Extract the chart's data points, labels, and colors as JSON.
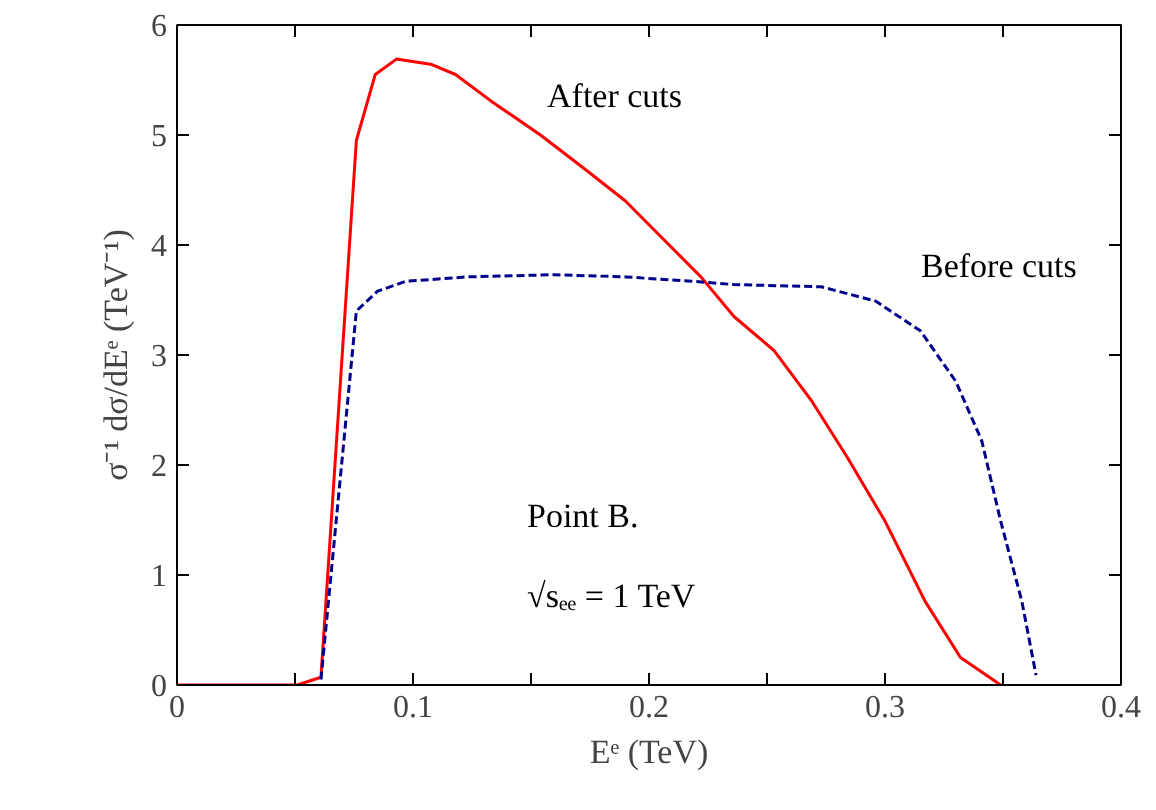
{
  "chart_data": {
    "type": "line",
    "xlabel": "Eᵉ (TeV)",
    "ylabel": "σ⁻¹ dσ/dEᵉ (TeV⁻¹)",
    "xlim": [
      0,
      0.4
    ],
    "ylim": [
      0,
      6
    ],
    "xticks": [
      0,
      {
        "value": 0.05,
        "label": null
      },
      0.1,
      {
        "value": 0.15,
        "label": null
      },
      0.2,
      {
        "value": 0.25,
        "label": null
      },
      0.3,
      {
        "value": 0.35,
        "label": null
      },
      0.4
    ],
    "yticks": [
      0,
      1,
      2,
      3,
      4,
      5,
      6
    ],
    "grid": false,
    "annotations": [
      "Point B.",
      "√sₑₑ = 1 TeV"
    ],
    "series": [
      {
        "name": "After cuts",
        "color": "#ff0000",
        "line_style": "solid",
        "x": [
          0,
          0.051,
          0.061,
          0.076,
          0.084,
          0.093,
          0.108,
          0.118,
          0.133,
          0.154,
          0.174,
          0.19,
          0.222,
          0.236,
          0.253,
          0.269,
          0.284,
          0.3,
          0.317,
          0.332,
          0.349
        ],
        "values": [
          0,
          0,
          0.07,
          4.95,
          5.55,
          5.69,
          5.64,
          5.55,
          5.31,
          5.0,
          4.67,
          4.4,
          3.71,
          3.35,
          3.04,
          2.58,
          2.07,
          1.49,
          0.76,
          0.25,
          0
        ]
      },
      {
        "name": "Before cuts",
        "color": "#00008b",
        "line_style": "dashed",
        "x": [
          0.061,
          0.076,
          0.085,
          0.097,
          0.123,
          0.16,
          0.19,
          0.219,
          0.236,
          0.273,
          0.296,
          0.315,
          0.33,
          0.341,
          0.349,
          0.358,
          0.364
        ],
        "values": [
          0.05,
          3.4,
          3.58,
          3.67,
          3.71,
          3.73,
          3.71,
          3.67,
          3.64,
          3.62,
          3.49,
          3.22,
          2.76,
          2.22,
          1.49,
          0.76,
          0.09
        ]
      }
    ]
  }
}
